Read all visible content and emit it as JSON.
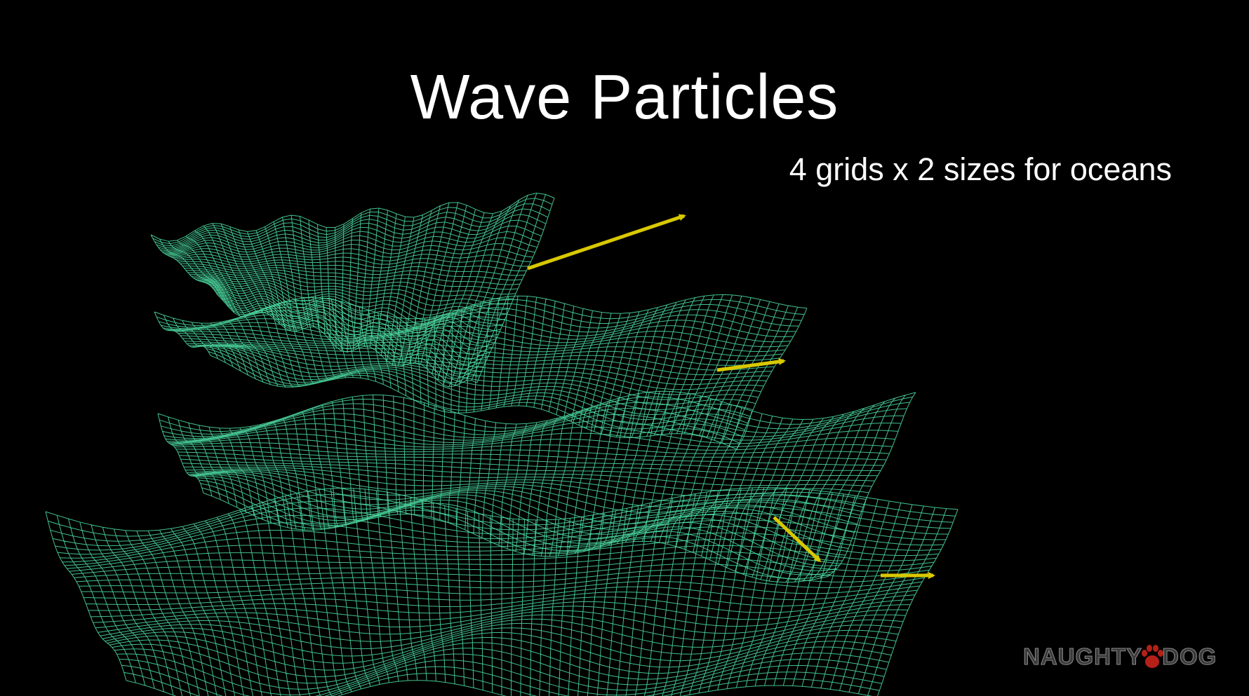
{
  "slide": {
    "title": "Wave Particles",
    "subtitle": "4 grids x 2 sizes for oceans",
    "logo": {
      "left": "NAUGHTY",
      "right": "DOG",
      "paw_icon": "paw-icon"
    }
  },
  "colors": {
    "background": "#000000",
    "mesh": "#4fe3a7",
    "arrow": "#d8c800",
    "text": "#ffffff"
  },
  "grids": [
    {
      "name": "grid-1"
    },
    {
      "name": "grid-2"
    },
    {
      "name": "grid-3"
    },
    {
      "name": "grid-4"
    }
  ],
  "arrows": [
    {
      "name": "arrow-1"
    },
    {
      "name": "arrow-2"
    },
    {
      "name": "arrow-3"
    },
    {
      "name": "arrow-4"
    }
  ]
}
